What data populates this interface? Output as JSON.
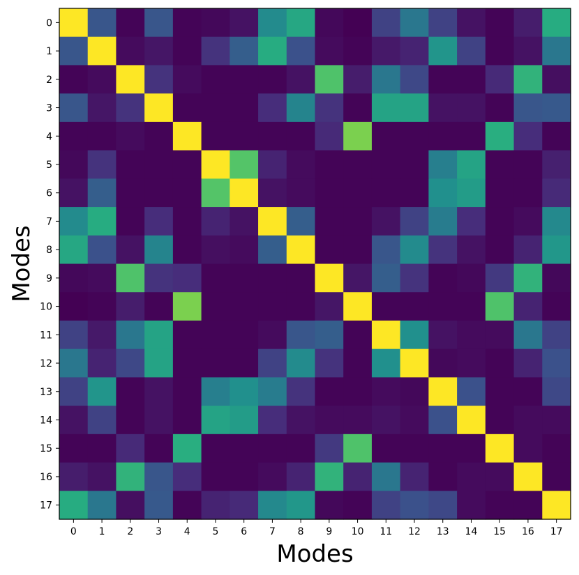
{
  "chart_data": {
    "type": "heatmap",
    "title": "",
    "xlabel": "Modes",
    "ylabel": "Modes",
    "x_ticks": [
      "0",
      "1",
      "2",
      "3",
      "4",
      "5",
      "6",
      "7",
      "8",
      "9",
      "10",
      "11",
      "12",
      "13",
      "14",
      "15",
      "16",
      "17"
    ],
    "y_ticks": [
      "0",
      "1",
      "2",
      "3",
      "4",
      "5",
      "6",
      "7",
      "8",
      "9",
      "10",
      "11",
      "12",
      "13",
      "14",
      "15",
      "16",
      "17"
    ],
    "colormap": "viridis",
    "value_range": [
      0,
      1
    ],
    "grid": false,
    "matrix": [
      [
        1.0,
        0.27,
        0.01,
        0.27,
        0.01,
        0.02,
        0.05,
        0.48,
        0.6,
        0.02,
        0.0,
        0.2,
        0.4,
        0.2,
        0.05,
        0.01,
        0.08,
        0.62
      ],
      [
        0.27,
        1.0,
        0.03,
        0.06,
        0.01,
        0.15,
        0.3,
        0.62,
        0.25,
        0.03,
        0.01,
        0.07,
        0.1,
        0.52,
        0.2,
        0.01,
        0.05,
        0.4
      ],
      [
        0.01,
        0.03,
        1.0,
        0.15,
        0.03,
        0.01,
        0.01,
        0.01,
        0.05,
        0.72,
        0.08,
        0.4,
        0.22,
        0.01,
        0.01,
        0.12,
        0.65,
        0.04
      ],
      [
        0.27,
        0.06,
        0.15,
        1.0,
        0.01,
        0.01,
        0.01,
        0.13,
        0.45,
        0.15,
        0.01,
        0.58,
        0.58,
        0.05,
        0.05,
        0.01,
        0.27,
        0.28
      ],
      [
        0.01,
        0.01,
        0.03,
        0.01,
        1.0,
        0.01,
        0.01,
        0.01,
        0.01,
        0.12,
        0.8,
        0.01,
        0.01,
        0.01,
        0.01,
        0.63,
        0.13,
        0.01
      ],
      [
        0.02,
        0.15,
        0.01,
        0.01,
        0.01,
        1.0,
        0.73,
        0.1,
        0.03,
        0.01,
        0.01,
        0.01,
        0.01,
        0.43,
        0.58,
        0.01,
        0.01,
        0.09
      ],
      [
        0.05,
        0.3,
        0.01,
        0.01,
        0.01,
        0.73,
        1.0,
        0.05,
        0.03,
        0.01,
        0.01,
        0.01,
        0.01,
        0.5,
        0.55,
        0.01,
        0.01,
        0.12
      ],
      [
        0.48,
        0.62,
        0.01,
        0.13,
        0.01,
        0.1,
        0.05,
        1.0,
        0.3,
        0.01,
        0.01,
        0.05,
        0.2,
        0.42,
        0.13,
        0.01,
        0.03,
        0.47
      ],
      [
        0.6,
        0.25,
        0.05,
        0.45,
        0.01,
        0.04,
        0.03,
        0.3,
        1.0,
        0.01,
        0.01,
        0.27,
        0.48,
        0.15,
        0.05,
        0.01,
        0.1,
        0.53
      ],
      [
        0.02,
        0.03,
        0.72,
        0.15,
        0.13,
        0.01,
        0.01,
        0.01,
        0.01,
        1.0,
        0.06,
        0.3,
        0.15,
        0.01,
        0.02,
        0.17,
        0.65,
        0.02
      ],
      [
        0.0,
        0.01,
        0.08,
        0.01,
        0.8,
        0.01,
        0.01,
        0.01,
        0.01,
        0.06,
        1.0,
        0.01,
        0.01,
        0.01,
        0.01,
        0.72,
        0.1,
        0.01
      ],
      [
        0.2,
        0.07,
        0.4,
        0.58,
        0.01,
        0.01,
        0.01,
        0.03,
        0.27,
        0.3,
        0.01,
        1.0,
        0.5,
        0.05,
        0.03,
        0.03,
        0.4,
        0.2
      ],
      [
        0.4,
        0.1,
        0.22,
        0.58,
        0.01,
        0.01,
        0.01,
        0.2,
        0.48,
        0.15,
        0.01,
        0.5,
        1.0,
        0.02,
        0.03,
        0.01,
        0.1,
        0.25
      ],
      [
        0.2,
        0.52,
        0.01,
        0.05,
        0.01,
        0.43,
        0.5,
        0.42,
        0.15,
        0.01,
        0.01,
        0.03,
        0.02,
        1.0,
        0.25,
        0.01,
        0.01,
        0.22
      ],
      [
        0.05,
        0.2,
        0.01,
        0.05,
        0.01,
        0.58,
        0.55,
        0.13,
        0.05,
        0.03,
        0.03,
        0.05,
        0.03,
        0.25,
        1.0,
        0.01,
        0.03,
        0.03
      ],
      [
        0.01,
        0.01,
        0.12,
        0.01,
        0.63,
        0.01,
        0.01,
        0.01,
        0.01,
        0.17,
        0.72,
        0.01,
        0.01,
        0.01,
        0.01,
        1.0,
        0.03,
        0.01
      ],
      [
        0.08,
        0.05,
        0.65,
        0.27,
        0.13,
        0.01,
        0.01,
        0.03,
        0.1,
        0.65,
        0.1,
        0.4,
        0.1,
        0.01,
        0.03,
        0.03,
        1.0,
        0.01
      ],
      [
        0.62,
        0.4,
        0.04,
        0.28,
        0.01,
        0.1,
        0.12,
        0.47,
        0.53,
        0.02,
        0.01,
        0.2,
        0.25,
        0.22,
        0.03,
        0.01,
        0.01,
        1.0
      ]
    ]
  }
}
